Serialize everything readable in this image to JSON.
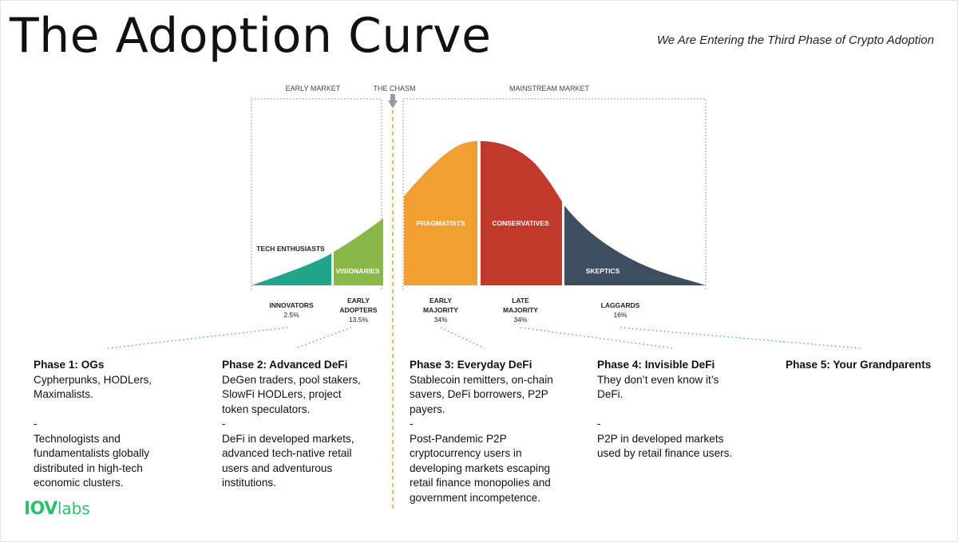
{
  "title": "The Adoption Curve",
  "subtitle": "We Are Entering the Third Phase of Crypto Adoption",
  "markets": {
    "early": "EARLY MARKET",
    "chasm": "THE CHASM",
    "mainstream": "MAINSTREAM MARKET"
  },
  "segments": [
    {
      "label": "TECH ENTHUSIASTS",
      "color": "#20a58a"
    },
    {
      "label": "VISIONARIES",
      "color": "#8ab848"
    },
    {
      "label": "PRAGMATISTS",
      "color": "#f0a030"
    },
    {
      "label": "CONSERVATIVES",
      "color": "#c0392b"
    },
    {
      "label": "SKEPTICS",
      "color": "#3d4e60"
    }
  ],
  "groups": [
    {
      "name": [
        "INNOVATORS"
      ],
      "pct": "2.5%"
    },
    {
      "name": [
        "EARLY",
        "ADOPTERS"
      ],
      "pct": "13.5%"
    },
    {
      "name": [
        "EARLY",
        "MAJORITY"
      ],
      "pct": "34%"
    },
    {
      "name": [
        "LATE",
        "MAJORITY"
      ],
      "pct": "34%"
    },
    {
      "name": [
        "LAGGARDS"
      ],
      "pct": "16%"
    }
  ],
  "phases": [
    {
      "title": "Phase 1: OGs",
      "lines": [
        "Cypherpunks, HODLers,",
        "Maximalists."
      ],
      "sep": "-",
      "extra": [
        "Technologists and",
        "fundamentalists globally",
        "distributed in high-tech",
        "economic clusters."
      ],
      "gap_before_sep": true
    },
    {
      "title": "Phase 2: Advanced DeFi",
      "lines": [
        "DeGen traders, pool stakers,",
        "SlowFi HODLers, project",
        "token speculators."
      ],
      "sep": "-",
      "extra": [
        "DeFi in developed markets,",
        "advanced tech-native retail",
        "users and adventurous",
        "institutions."
      ],
      "gap_before_sep": false
    },
    {
      "title": "Phase 3: Everyday DeFi",
      "lines": [
        "Stablecoin remitters, on-chain",
        "savers, DeFi borrowers, P2P",
        "payers."
      ],
      "sep": "-",
      "extra": [
        "Post-Pandemic P2P",
        "cryptocurrency users in",
        "developing markets escaping",
        "retail finance monopolies and",
        "government incompetence."
      ],
      "gap_before_sep": false
    },
    {
      "title": "Phase 4: Invisible DeFi",
      "lines": [
        "They don’t even know it’s",
        "DeFi."
      ],
      "sep": "-",
      "extra": [
        "P2P in developed markets",
        "used by retail finance users."
      ],
      "gap_before_sep": true
    },
    {
      "title": "Phase 5: Your Grandparents",
      "lines": [],
      "sep": "",
      "extra": [],
      "gap_before_sep": false
    }
  ],
  "logo": {
    "part1": "IOV",
    "part2": "labs"
  },
  "colors": {
    "chasm_line": "#f0a030",
    "dotted_leader": "#3aa57a",
    "bracket": "#888888"
  }
}
